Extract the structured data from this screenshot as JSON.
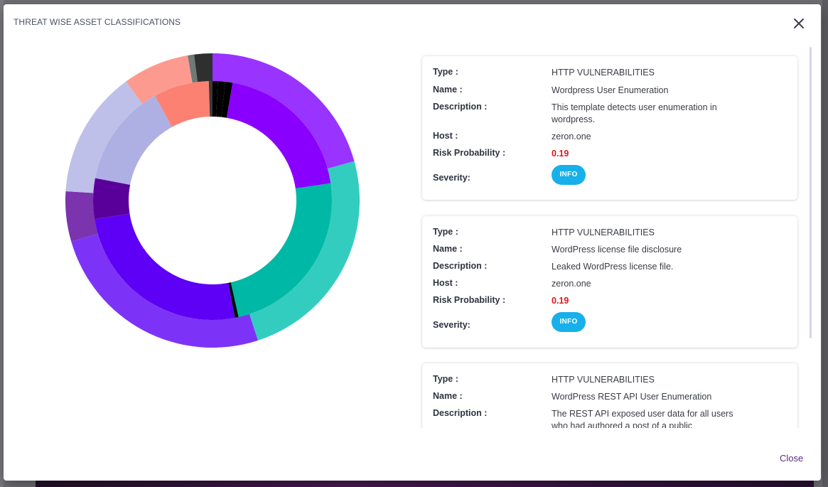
{
  "modal": {
    "title": "THREAT WISE ASSET CLASSIFICATIONS",
    "close_label": "Close",
    "close_icon": "close-icon"
  },
  "labels": {
    "type": "Type :",
    "name": "Name :",
    "description": "Description :",
    "host": "Host :",
    "risk": "Risk Probability :",
    "severity": "Severity:"
  },
  "findings": [
    {
      "type": "HTTP VULNERABILITIES",
      "name": "Wordpress User Enumeration",
      "description": "This template detects user enumeration in wordpress.",
      "host": "zeron.one",
      "risk": "0.19",
      "severity": "INFO"
    },
    {
      "type": "HTTP VULNERABILITIES",
      "name": "WordPress license file disclosure",
      "description": "Leaked WordPress license file.",
      "host": "zeron.one",
      "risk": "0.19",
      "severity": "INFO"
    },
    {
      "type": "HTTP VULNERABILITIES",
      "name": "WordPress REST API User Enumeration",
      "description": "The REST API exposed user data for all users who had authored a post of a public"
    }
  ],
  "colors": {
    "severity_info": "#17b0ea",
    "risk": "#e4141d",
    "close_link": "#5a2d82"
  },
  "chart_data": {
    "type": "pie",
    "title": "",
    "inner_ring": [
      {
        "value": 0.7,
        "color": "#000000"
      },
      {
        "value": 1.0,
        "color": "#000000"
      },
      {
        "value": 1.0,
        "color": "#000000"
      },
      {
        "value": 20.0,
        "color": "#8a00ff"
      },
      {
        "value": 23.8,
        "color": "#00b8a6"
      },
      {
        "value": 0.5,
        "color": "#0a0a0a"
      },
      {
        "value": 25.5,
        "color": "#5d00f5"
      },
      {
        "value": 5.5,
        "color": "#5a009a"
      },
      {
        "value": 14.0,
        "color": "#aeb0e3"
      },
      {
        "value": 7.5,
        "color": "#fc8173"
      },
      {
        "value": 0.5,
        "color": "#3a3a3a"
      }
    ],
    "outer_ring": [
      {
        "value": 20.7,
        "color": "#9933ff"
      },
      {
        "value": 24.3,
        "color": "#33cdc0"
      },
      {
        "value": 25.5,
        "color": "#7d33f7"
      },
      {
        "value": 5.5,
        "color": "#7b33ae"
      },
      {
        "value": 14.0,
        "color": "#bec0ea"
      },
      {
        "value": 7.3,
        "color": "#fd9a8f"
      },
      {
        "value": 0.7,
        "color": "#6e7a76"
      },
      {
        "value": 2.0,
        "color": "#2f2f2f"
      }
    ]
  }
}
